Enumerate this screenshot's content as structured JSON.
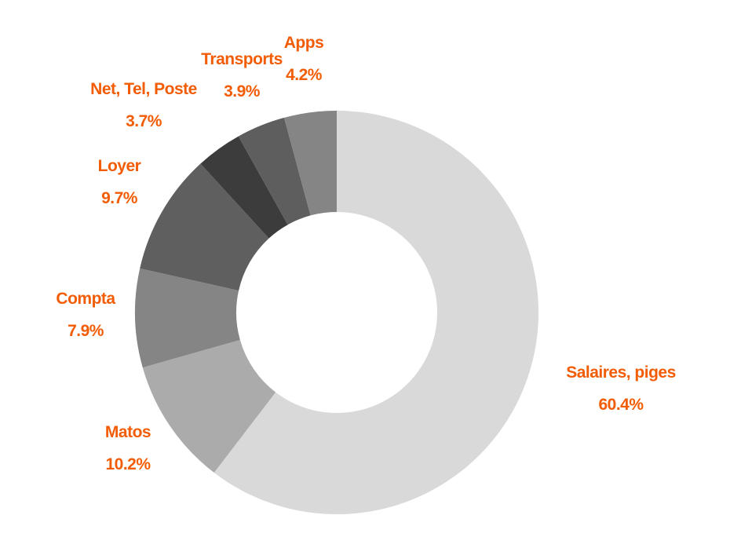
{
  "chart_data": {
    "type": "pie",
    "donut": true,
    "title": "",
    "label_color": "#f25c05",
    "slices": [
      {
        "label": "Salaires, piges",
        "value": 60.4,
        "percent_label": "60.4%",
        "color": "#d9d9d9"
      },
      {
        "label": "Matos",
        "value": 10.2,
        "percent_label": "10.2%",
        "color": "#ababab"
      },
      {
        "label": "Compta",
        "value": 7.9,
        "percent_label": "7.9%",
        "color": "#858585"
      },
      {
        "label": "Loyer",
        "value": 9.7,
        "percent_label": "9.7%",
        "color": "#5f5f5f"
      },
      {
        "label": "Net, Tel, Poste",
        "value": 3.7,
        "percent_label": "3.7%",
        "color": "#3c3c3c"
      },
      {
        "label": "Transports",
        "value": 3.9,
        "percent_label": "3.9%",
        "color": "#5e5e5e"
      },
      {
        "label": "Apps",
        "value": 4.2,
        "percent_label": "4.2%",
        "color": "#858585"
      }
    ]
  }
}
